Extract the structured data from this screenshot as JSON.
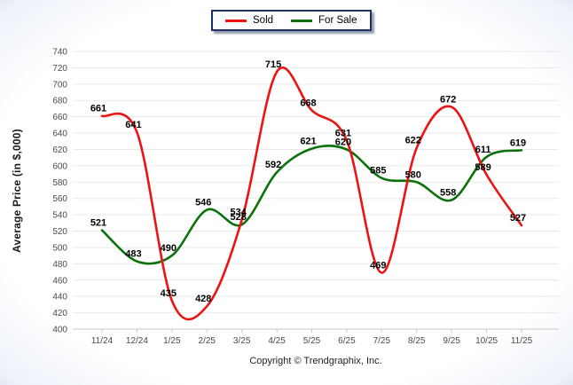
{
  "y_axis_title": "Average Price (in $,000)",
  "footer_text": "Copyright © Trendgraphix, Inc.",
  "colors": {
    "sold": "#ec1313",
    "for_sale": "#0b720b",
    "grid": "#e9e9e9",
    "axis": "#c9c9c9",
    "legend_border": "#1f3064"
  },
  "chart_data": {
    "type": "line",
    "x": [
      "11/24",
      "12/24",
      "1/25",
      "2/25",
      "3/25",
      "4/25",
      "5/25",
      "6/25",
      "7/25",
      "8/25",
      "9/25",
      "10/25",
      "11/25"
    ],
    "series": [
      {
        "name": "Sold",
        "color": "#ec1313",
        "values": [
          661,
          641,
          435,
          428,
          534,
          715,
          668,
          631,
          469,
          622,
          672,
          589,
          527
        ]
      },
      {
        "name": "For Sale",
        "color": "#0b720b",
        "values": [
          521,
          483,
          490,
          546,
          528,
          592,
          621,
          620,
          585,
          580,
          558,
          611,
          619
        ]
      }
    ],
    "ylim": [
      400,
      740
    ],
    "ytick_step": 20,
    "yticks": [
      400,
      420,
      440,
      460,
      480,
      500,
      520,
      540,
      560,
      580,
      600,
      620,
      640,
      660,
      680,
      700,
      720,
      740
    ],
    "ylabel": "Average Price (in $,000)",
    "xlabel": "",
    "grid": "horizontal",
    "legend_position": "top-center",
    "curve": "smooth-spline",
    "point_labels": "all"
  }
}
